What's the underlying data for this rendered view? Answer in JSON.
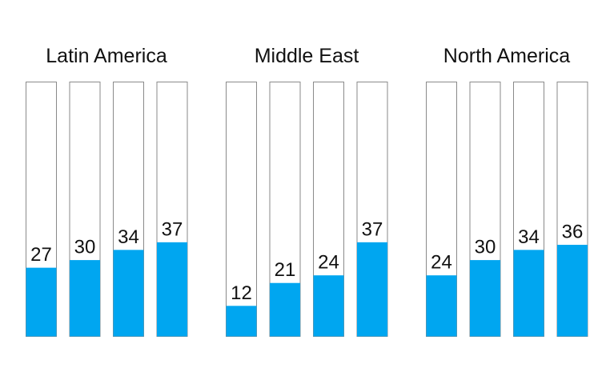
{
  "chart_data": {
    "type": "bar",
    "title": "",
    "ylim": [
      0,
      100
    ],
    "colors": {
      "fill": "#00a6f0",
      "outline": "#8a8a8a",
      "background": "#ffffff"
    },
    "groups": [
      {
        "name": "Latin America",
        "values": [
          27,
          30,
          34,
          37
        ]
      },
      {
        "name": "Middle East",
        "values": [
          12,
          21,
          24,
          37
        ]
      },
      {
        "name": "North America",
        "values": [
          24,
          30,
          34,
          36
        ]
      }
    ]
  }
}
